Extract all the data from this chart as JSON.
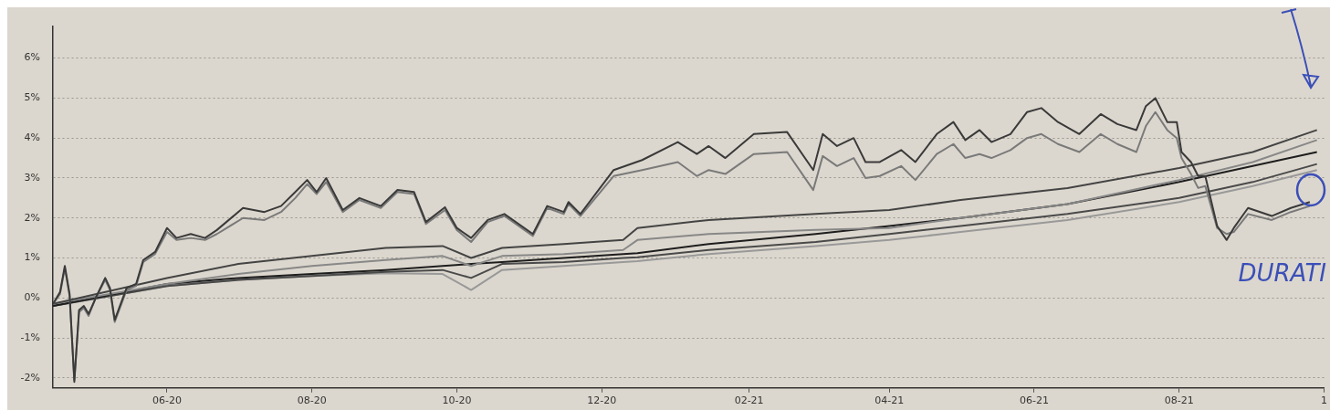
{
  "chart_data": {
    "type": "line",
    "annotations": [
      "DURATI"
    ],
    "xlim": [
      "2020-04-14",
      "2021-10-01"
    ],
    "xticks": [
      {
        "value": "2020-06-01",
        "label": "06-20"
      },
      {
        "value": "2020-08-01",
        "label": "08-20"
      },
      {
        "value": "2020-10-01",
        "label": "10-20"
      },
      {
        "value": "2020-12-01",
        "label": "12-20"
      },
      {
        "value": "2021-02-01",
        "label": "02-21"
      },
      {
        "value": "2021-04-01",
        "label": "04-21"
      },
      {
        "value": "2021-06-01",
        "label": "06-21"
      },
      {
        "value": "2021-08-01",
        "label": "08-21"
      },
      {
        "value": "2021-10-01",
        "label": "1"
      }
    ],
    "ylim": [
      -2.25,
      6.8
    ],
    "yticks": [
      {
        "value": -2,
        "label": "-2%"
      },
      {
        "value": -1,
        "label": "-1%"
      },
      {
        "value": 0,
        "label": "0%"
      },
      {
        "value": 1,
        "label": "1%"
      },
      {
        "value": 2,
        "label": "2%"
      },
      {
        "value": 3,
        "label": "3%"
      },
      {
        "value": 4,
        "label": "4%"
      },
      {
        "value": 5,
        "label": "5%"
      },
      {
        "value": 6,
        "label": "6%"
      }
    ],
    "grid": "y",
    "marker": "none",
    "line_style": "solid",
    "series": [
      {
        "color": "#3a3a3a",
        "x": [
          "2020-04-14",
          "2020-04-17",
          "2020-04-19",
          "2020-04-21",
          "2020-04-23",
          "2020-04-25",
          "2020-04-27",
          "2020-04-29",
          "2020-05-02",
          "2020-05-06",
          "2020-05-08",
          "2020-05-10",
          "2020-05-15",
          "2020-05-19",
          "2020-05-22",
          "2020-05-27",
          "2020-06-01",
          "2020-06-05",
          "2020-06-11",
          "2020-06-17",
          "2020-06-22",
          "2020-07-03",
          "2020-07-12",
          "2020-07-19",
          "2020-07-25",
          "2020-07-30",
          "2020-08-03",
          "2020-08-07",
          "2020-08-14",
          "2020-08-21",
          "2020-08-30",
          "2020-09-06",
          "2020-09-13",
          "2020-09-18",
          "2020-09-26",
          "2020-10-01",
          "2020-10-07",
          "2020-10-14",
          "2020-10-21",
          "2020-11-02",
          "2020-11-08",
          "2020-11-15",
          "2020-11-17",
          "2020-11-22",
          "2020-12-06",
          "2020-12-18",
          "2021-01-02",
          "2021-01-10",
          "2021-01-15",
          "2021-01-22",
          "2021-02-03",
          "2021-02-17",
          "2021-02-28",
          "2021-03-04",
          "2021-03-10",
          "2021-03-17",
          "2021-03-22",
          "2021-03-28",
          "2021-04-06",
          "2021-04-12",
          "2021-04-21",
          "2021-04-28",
          "2021-05-03",
          "2021-05-09",
          "2021-05-14",
          "2021-05-22",
          "2021-05-29",
          "2021-06-04",
          "2021-06-11",
          "2021-06-20",
          "2021-06-29",
          "2021-07-06",
          "2021-07-14",
          "2021-07-18",
          "2021-07-22",
          "2021-07-27",
          "2021-07-31",
          "2021-08-02",
          "2021-08-06",
          "2021-08-09",
          "2021-08-12",
          "2021-08-17",
          "2021-08-21",
          "2021-08-24",
          "2021-08-30",
          "2021-09-09",
          "2021-09-17",
          "2021-09-25"
        ],
        "values": [
          -0.15,
          0.15,
          0.8,
          0.1,
          -2.1,
          -0.3,
          -0.2,
          -0.4,
          0.0,
          0.5,
          0.25,
          -0.55,
          0.25,
          0.35,
          0.95,
          1.15,
          1.75,
          1.5,
          1.6,
          1.5,
          1.7,
          2.25,
          2.15,
          2.3,
          2.65,
          2.95,
          2.65,
          3.0,
          2.2,
          2.5,
          2.3,
          2.7,
          2.65,
          1.9,
          2.27,
          1.75,
          1.5,
          1.95,
          2.1,
          1.6,
          2.3,
          2.15,
          2.4,
          2.1,
          3.2,
          3.45,
          3.9,
          3.6,
          3.8,
          3.5,
          4.1,
          4.15,
          3.2,
          4.1,
          3.8,
          4.0,
          3.4,
          3.4,
          3.7,
          3.4,
          4.1,
          4.4,
          3.95,
          4.2,
          3.9,
          4.1,
          4.65,
          4.75,
          4.4,
          4.1,
          4.6,
          4.35,
          4.2,
          4.8,
          5.0,
          4.4,
          4.4,
          3.65,
          3.4,
          3.05,
          3.05,
          1.8,
          1.45,
          1.75,
          2.25,
          2.05,
          2.25,
          2.4
        ]
      },
      {
        "color": "#7a7a7a",
        "x": [
          "2020-04-14",
          "2020-04-17",
          "2020-04-19",
          "2020-04-21",
          "2020-04-23",
          "2020-04-25",
          "2020-04-27",
          "2020-04-29",
          "2020-05-02",
          "2020-05-06",
          "2020-05-08",
          "2020-05-10",
          "2020-05-15",
          "2020-05-19",
          "2020-05-22",
          "2020-05-27",
          "2020-06-01",
          "2020-06-05",
          "2020-06-11",
          "2020-06-17",
          "2020-06-22",
          "2020-07-03",
          "2020-07-12",
          "2020-07-19",
          "2020-07-25",
          "2020-07-30",
          "2020-08-03",
          "2020-08-07",
          "2020-08-14",
          "2020-08-21",
          "2020-08-30",
          "2020-09-06",
          "2020-09-13",
          "2020-09-18",
          "2020-09-26",
          "2020-10-01",
          "2020-10-07",
          "2020-10-14",
          "2020-10-21",
          "2020-11-02",
          "2020-11-08",
          "2020-11-15",
          "2020-11-17",
          "2020-11-22",
          "2020-12-06",
          "2020-12-18",
          "2021-01-02",
          "2021-01-10",
          "2021-01-15",
          "2021-01-22",
          "2021-02-03",
          "2021-02-17",
          "2021-02-28",
          "2021-03-04",
          "2021-03-10",
          "2021-03-17",
          "2021-03-22",
          "2021-03-28",
          "2021-04-06",
          "2021-04-12",
          "2021-04-21",
          "2021-04-28",
          "2021-05-03",
          "2021-05-09",
          "2021-05-14",
          "2021-05-22",
          "2021-05-29",
          "2021-06-04",
          "2021-06-11",
          "2021-06-20",
          "2021-06-29",
          "2021-07-06",
          "2021-07-14",
          "2021-07-18",
          "2021-07-22",
          "2021-07-27",
          "2021-07-31",
          "2021-08-02",
          "2021-08-06",
          "2021-08-09",
          "2021-08-12",
          "2021-08-17",
          "2021-08-21",
          "2021-08-24",
          "2021-08-30",
          "2021-09-09",
          "2021-09-17",
          "2021-09-25"
        ],
        "values": [
          -0.15,
          0.1,
          0.75,
          0.05,
          -2.05,
          -0.35,
          -0.25,
          -0.45,
          0.0,
          0.45,
          0.2,
          -0.6,
          0.2,
          0.3,
          0.9,
          1.1,
          1.65,
          1.45,
          1.5,
          1.45,
          1.6,
          2.0,
          1.95,
          2.15,
          2.5,
          2.85,
          2.6,
          2.9,
          2.15,
          2.45,
          2.25,
          2.65,
          2.6,
          1.85,
          2.2,
          1.7,
          1.4,
          1.9,
          2.05,
          1.55,
          2.25,
          2.1,
          2.35,
          2.05,
          3.05,
          3.2,
          3.4,
          3.05,
          3.2,
          3.1,
          3.6,
          3.65,
          2.7,
          3.55,
          3.3,
          3.5,
          3.0,
          3.05,
          3.3,
          2.95,
          3.6,
          3.85,
          3.5,
          3.6,
          3.5,
          3.7,
          4.0,
          4.1,
          3.85,
          3.65,
          4.1,
          3.85,
          3.65,
          4.3,
          4.65,
          4.2,
          4.0,
          3.5,
          3.1,
          2.75,
          2.8,
          1.75,
          1.6,
          1.65,
          2.1,
          1.95,
          2.15,
          2.3
        ]
      },
      {
        "color": "#444444",
        "x": [
          "2020-04-14",
          "2020-06-01",
          "2020-07-01",
          "2020-08-01",
          "2020-09-01",
          "2020-09-25",
          "2020-10-07",
          "2020-10-20",
          "2020-11-15",
          "2020-12-10",
          "2020-12-16",
          "2021-01-15",
          "2021-03-01",
          "2021-04-01",
          "2021-05-01",
          "2021-06-15",
          "2021-08-01",
          "2021-09-01",
          "2021-09-28"
        ],
        "values": [
          -0.15,
          0.5,
          0.85,
          1.05,
          1.25,
          1.3,
          1.0,
          1.25,
          1.35,
          1.45,
          1.75,
          1.95,
          2.1,
          2.2,
          2.45,
          2.75,
          3.25,
          3.65,
          4.2
        ]
      },
      {
        "color": "#888888",
        "x": [
          "2020-04-14",
          "2020-06-01",
          "2020-07-01",
          "2020-08-01",
          "2020-09-01",
          "2020-09-25",
          "2020-10-07",
          "2020-10-20",
          "2020-11-15",
          "2020-12-10",
          "2020-12-16",
          "2021-01-15",
          "2021-03-01",
          "2021-04-01",
          "2021-05-01",
          "2021-06-15",
          "2021-08-01",
          "2021-09-01",
          "2021-09-28"
        ],
        "values": [
          -0.15,
          0.35,
          0.6,
          0.8,
          0.95,
          1.05,
          0.8,
          1.05,
          1.1,
          1.2,
          1.45,
          1.6,
          1.7,
          1.75,
          2.0,
          2.35,
          2.95,
          3.4,
          3.95
        ]
      },
      {
        "color": "#1e1e1e",
        "x": [
          "2020-04-14",
          "2020-06-01",
          "2020-07-01",
          "2020-08-01",
          "2020-09-01",
          "2020-09-25",
          "2020-10-07",
          "2020-10-20",
          "2020-11-15",
          "2020-12-10",
          "2020-12-16",
          "2021-01-15",
          "2021-03-01",
          "2021-04-01",
          "2021-05-01",
          "2021-06-15",
          "2021-08-01",
          "2021-09-01",
          "2021-09-28"
        ],
        "values": [
          -0.2,
          0.35,
          0.5,
          0.6,
          0.7,
          0.8,
          0.85,
          0.9,
          1.0,
          1.1,
          1.12,
          1.35,
          1.6,
          1.8,
          2.0,
          2.35,
          2.9,
          3.3,
          3.65
        ]
      },
      {
        "color": "#4a4a4a",
        "x": [
          "2020-04-14",
          "2020-06-01",
          "2020-07-01",
          "2020-08-01",
          "2020-09-01",
          "2020-09-25",
          "2020-10-07",
          "2020-10-20",
          "2020-11-15",
          "2020-12-10",
          "2020-12-16",
          "2021-01-15",
          "2021-03-01",
          "2021-04-01",
          "2021-05-01",
          "2021-06-15",
          "2021-08-01",
          "2021-09-01",
          "2021-09-28"
        ],
        "values": [
          -0.2,
          0.3,
          0.45,
          0.55,
          0.65,
          0.7,
          0.5,
          0.85,
          0.9,
          1.0,
          1.02,
          1.2,
          1.4,
          1.6,
          1.8,
          2.1,
          2.5,
          2.9,
          3.35
        ]
      },
      {
        "color": "#999999",
        "x": [
          "2020-04-14",
          "2020-06-01",
          "2020-07-01",
          "2020-08-01",
          "2020-09-01",
          "2020-09-25",
          "2020-10-07",
          "2020-10-20",
          "2020-11-15",
          "2020-12-10",
          "2020-12-16",
          "2021-01-15",
          "2021-03-01",
          "2021-04-01",
          "2021-05-01",
          "2021-06-15",
          "2021-08-01",
          "2021-09-01",
          "2021-09-28"
        ],
        "values": [
          -0.2,
          0.3,
          0.45,
          0.55,
          0.62,
          0.6,
          0.2,
          0.7,
          0.8,
          0.9,
          0.92,
          1.1,
          1.3,
          1.45,
          1.65,
          1.95,
          2.4,
          2.8,
          3.2
        ]
      }
    ]
  }
}
